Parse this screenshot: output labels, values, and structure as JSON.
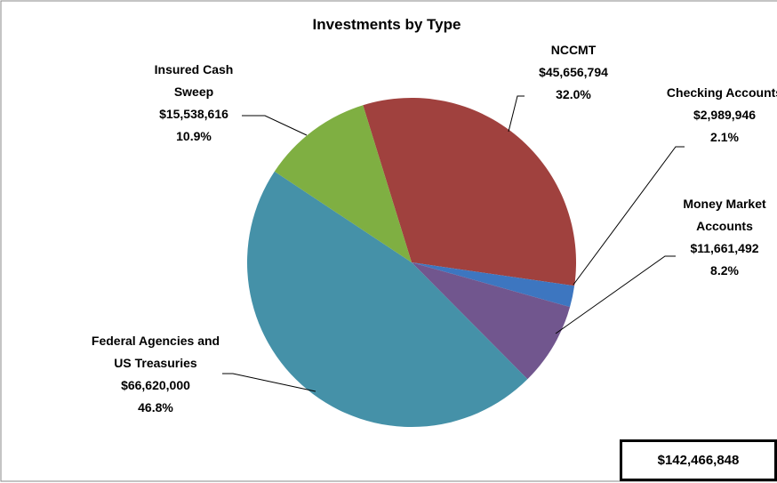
{
  "chart_data": {
    "type": "pie",
    "title": "Investments by Type",
    "categories": [
      "NCCMT",
      "Checking Accounts",
      "Money Market Accounts",
      "Federal Agencies and US Treasuries",
      "Insured Cash Sweep"
    ],
    "values": [
      45656794,
      2989946,
      11661492,
      66620000,
      15538616
    ],
    "value_labels": [
      "$45,656,794",
      "$2,989,946",
      "$11,661,492",
      "$66,620,000",
      "$15,538,616"
    ],
    "percent_labels": [
      "32.0%",
      "2.1%",
      "8.2%",
      "46.8%",
      "10.9%"
    ],
    "colors": [
      "#a0413e",
      "#3d76c0",
      "#71568e",
      "#4591a8",
      "#7faf42"
    ],
    "total_label": "$142,466,848"
  }
}
